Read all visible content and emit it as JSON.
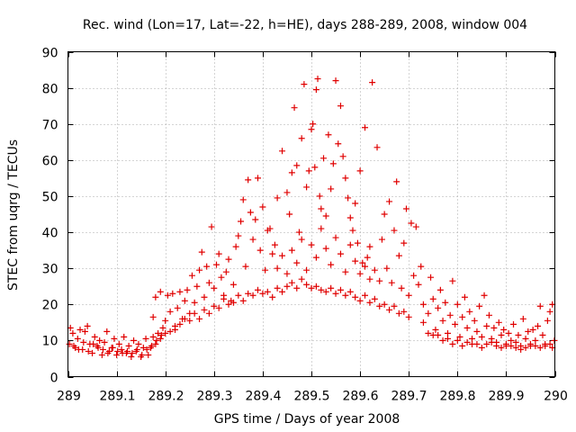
{
  "chart_data": {
    "type": "scatter",
    "title": "Rec. wind (Lon=17, Lat=-22, h=HE), days 288-289, 2008, window 004",
    "xlabel": "GPS time / Days of year 2008",
    "ylabel": "STEC from uqrg / TECUs",
    "xlim": [
      289.0,
      290.0
    ],
    "ylim": [
      0,
      90
    ],
    "grid": true,
    "marker": "+",
    "color": "#e00000",
    "x_ticks": [
      {
        "value": 289.0,
        "label": "289"
      },
      {
        "value": 289.1,
        "label": "289.1"
      },
      {
        "value": 289.2,
        "label": "289.2"
      },
      {
        "value": 289.3,
        "label": "289.3"
      },
      {
        "value": 289.4,
        "label": "289.4"
      },
      {
        "value": 289.5,
        "label": "289.5"
      },
      {
        "value": 289.6,
        "label": "289.6"
      },
      {
        "value": 289.7,
        "label": "289.7"
      },
      {
        "value": 289.8,
        "label": "289.8"
      },
      {
        "value": 289.9,
        "label": "289.9"
      },
      {
        "value": 290.0,
        "label": "290"
      }
    ],
    "y_ticks": [
      {
        "value": 0,
        "label": "0"
      },
      {
        "value": 10,
        "label": "10"
      },
      {
        "value": 20,
        "label": "20"
      },
      {
        "value": 30,
        "label": "30"
      },
      {
        "value": 40,
        "label": "40"
      },
      {
        "value": 50,
        "label": "50"
      },
      {
        "value": 60,
        "label": "60"
      },
      {
        "value": 70,
        "label": "70"
      },
      {
        "value": 80,
        "label": "80"
      },
      {
        "value": 90,
        "label": "90"
      }
    ],
    "points": [
      [
        289.005,
        13.5
      ],
      [
        289.01,
        12.0
      ],
      [
        289.015,
        8.0
      ],
      [
        289.02,
        10.5
      ],
      [
        289.025,
        13.0
      ],
      [
        289.03,
        7.5
      ],
      [
        289.035,
        12.5
      ],
      [
        289.04,
        14.0
      ],
      [
        289.045,
        9.0
      ],
      [
        289.05,
        6.5
      ],
      [
        289.055,
        11.0
      ],
      [
        289.06,
        8.5
      ],
      [
        289.065,
        10.0
      ],
      [
        289.07,
        6.0
      ],
      [
        289.075,
        9.5
      ],
      [
        289.08,
        12.5
      ],
      [
        289.085,
        7.0
      ],
      [
        289.09,
        8.0
      ],
      [
        289.095,
        10.5
      ],
      [
        289.1,
        6.0
      ],
      [
        289.105,
        9.0
      ],
      [
        289.11,
        7.5
      ],
      [
        289.115,
        11.0
      ],
      [
        289.12,
        6.5
      ],
      [
        289.125,
        8.5
      ],
      [
        289.13,
        5.5
      ],
      [
        289.135,
        10.0
      ],
      [
        289.14,
        7.0
      ],
      [
        289.145,
        9.0
      ],
      [
        289.15,
        5.5
      ],
      [
        289.155,
        8.0
      ],
      [
        289.16,
        10.5
      ],
      [
        289.165,
        6.0
      ],
      [
        289.17,
        8.0
      ],
      [
        289.175,
        11.0
      ],
      [
        289.18,
        9.0
      ],
      [
        289.185,
        12.0
      ],
      [
        289.19,
        10.5
      ],
      [
        289.195,
        13.5
      ],
      [
        289.2,
        12.0
      ],
      [
        289.003,
        9.0
      ],
      [
        289.012,
        8.5
      ],
      [
        289.022,
        7.5
      ],
      [
        289.032,
        9.5
      ],
      [
        289.042,
        7.0
      ],
      [
        289.052,
        9.0
      ],
      [
        289.062,
        8.0
      ],
      [
        289.072,
        7.5
      ],
      [
        289.082,
        6.5
      ],
      [
        289.092,
        8.0
      ],
      [
        289.102,
        7.0
      ],
      [
        289.112,
        6.5
      ],
      [
        289.122,
        7.0
      ],
      [
        289.132,
        6.5
      ],
      [
        289.142,
        7.5
      ],
      [
        289.152,
        6.0
      ],
      [
        289.162,
        7.5
      ],
      [
        289.172,
        8.5
      ],
      [
        289.182,
        10.0
      ],
      [
        289.192,
        11.5
      ],
      [
        289.175,
        16.5
      ],
      [
        289.18,
        22.0
      ],
      [
        289.19,
        23.5
      ],
      [
        289.2,
        15.5
      ],
      [
        289.205,
        22.5
      ],
      [
        289.21,
        18.0
      ],
      [
        289.215,
        23.0
      ],
      [
        289.22,
        14.0
      ],
      [
        289.225,
        19.0
      ],
      [
        289.23,
        23.5
      ],
      [
        289.235,
        16.0
      ],
      [
        289.24,
        21.0
      ],
      [
        289.245,
        24.0
      ],
      [
        289.25,
        17.5
      ],
      [
        289.255,
        28.0
      ],
      [
        289.26,
        20.5
      ],
      [
        289.265,
        25.0
      ],
      [
        289.27,
        29.5
      ],
      [
        289.275,
        34.5
      ],
      [
        289.28,
        22.0
      ],
      [
        289.285,
        30.5
      ],
      [
        289.29,
        26.0
      ],
      [
        289.295,
        41.5
      ],
      [
        289.3,
        24.5
      ],
      [
        289.305,
        31.0
      ],
      [
        289.31,
        34.0
      ],
      [
        289.315,
        27.5
      ],
      [
        289.32,
        22.5
      ],
      [
        289.325,
        29.0
      ],
      [
        289.33,
        32.5
      ],
      [
        289.335,
        21.0
      ],
      [
        289.34,
        25.5
      ],
      [
        289.345,
        36.0
      ],
      [
        289.35,
        39.0
      ],
      [
        289.355,
        43.0
      ],
      [
        289.36,
        49.0
      ],
      [
        289.365,
        30.5
      ],
      [
        289.37,
        54.5
      ],
      [
        289.375,
        45.5
      ],
      [
        289.38,
        38.0
      ],
      [
        289.385,
        43.5
      ],
      [
        289.39,
        55.0
      ],
      [
        289.395,
        35.0
      ],
      [
        289.4,
        47.0
      ],
      [
        289.405,
        29.5
      ],
      [
        289.41,
        40.5
      ],
      [
        289.415,
        41.0
      ],
      [
        289.42,
        34.0
      ],
      [
        289.425,
        36.5
      ],
      [
        289.43,
        49.5
      ],
      [
        289.21,
        12.5
      ],
      [
        289.22,
        13.0
      ],
      [
        289.23,
        14.5
      ],
      [
        289.24,
        16.0
      ],
      [
        289.25,
        15.5
      ],
      [
        289.26,
        17.5
      ],
      [
        289.27,
        16.0
      ],
      [
        289.28,
        18.5
      ],
      [
        289.29,
        17.5
      ],
      [
        289.3,
        19.5
      ],
      [
        289.31,
        19.0
      ],
      [
        289.32,
        21.5
      ],
      [
        289.33,
        20.0
      ],
      [
        289.34,
        20.5
      ],
      [
        289.35,
        22.5
      ],
      [
        289.36,
        21.0
      ],
      [
        289.37,
        23.0
      ],
      [
        289.38,
        22.5
      ],
      [
        289.39,
        24.0
      ],
      [
        289.4,
        23.0
      ],
      [
        289.44,
        62.5
      ],
      [
        289.45,
        51.0
      ],
      [
        289.455,
        45.0
      ],
      [
        289.46,
        56.5
      ],
      [
        289.465,
        74.5
      ],
      [
        289.47,
        58.5
      ],
      [
        289.475,
        40.0
      ],
      [
        289.48,
        66.0
      ],
      [
        289.485,
        81.0
      ],
      [
        289.49,
        52.5
      ],
      [
        289.495,
        57.0
      ],
      [
        289.5,
        68.5
      ],
      [
        289.503,
        70.0
      ],
      [
        289.507,
        58.0
      ],
      [
        289.51,
        79.5
      ],
      [
        289.513,
        82.5
      ],
      [
        289.517,
        50.0
      ],
      [
        289.52,
        46.5
      ],
      [
        289.525,
        60.5
      ],
      [
        289.53,
        44.5
      ],
      [
        289.535,
        67.0
      ],
      [
        289.54,
        52.0
      ],
      [
        289.545,
        59.0
      ],
      [
        289.55,
        82.0
      ],
      [
        289.555,
        64.5
      ],
      [
        289.56,
        75.0
      ],
      [
        289.565,
        61.0
      ],
      [
        289.57,
        55.0
      ],
      [
        289.575,
        49.5
      ],
      [
        289.58,
        44.0
      ],
      [
        289.585,
        40.5
      ],
      [
        289.59,
        48.0
      ],
      [
        289.595,
        37.0
      ],
      [
        289.6,
        57.0
      ],
      [
        289.605,
        31.5
      ],
      [
        289.61,
        69.0
      ],
      [
        289.615,
        33.0
      ],
      [
        289.62,
        36.0
      ],
      [
        289.625,
        81.5
      ],
      [
        289.63,
        29.5
      ],
      [
        289.635,
        63.5
      ],
      [
        289.64,
        26.5
      ],
      [
        289.645,
        38.0
      ],
      [
        289.65,
        45.0
      ],
      [
        289.655,
        30.0
      ],
      [
        289.66,
        48.5
      ],
      [
        289.665,
        26.0
      ],
      [
        289.67,
        40.5
      ],
      [
        289.675,
        54.0
      ],
      [
        289.68,
        33.5
      ],
      [
        289.685,
        24.5
      ],
      [
        289.69,
        37.0
      ],
      [
        289.695,
        46.5
      ],
      [
        289.7,
        22.5
      ],
      [
        289.705,
        42.5
      ],
      [
        289.71,
        28.0
      ],
      [
        289.715,
        41.5
      ],
      [
        289.72,
        25.5
      ],
      [
        289.725,
        30.5
      ],
      [
        289.73,
        20.0
      ],
      [
        289.41,
        23.5
      ],
      [
        289.42,
        22.0
      ],
      [
        289.43,
        24.5
      ],
      [
        289.44,
        23.5
      ],
      [
        289.45,
        25.0
      ],
      [
        289.46,
        26.0
      ],
      [
        289.47,
        24.5
      ],
      [
        289.48,
        27.0
      ],
      [
        289.49,
        25.5
      ],
      [
        289.5,
        24.5
      ],
      [
        289.51,
        25.0
      ],
      [
        289.52,
        24.0
      ],
      [
        289.53,
        23.5
      ],
      [
        289.54,
        24.5
      ],
      [
        289.55,
        23.0
      ],
      [
        289.56,
        24.0
      ],
      [
        289.57,
        22.5
      ],
      [
        289.58,
        23.5
      ],
      [
        289.59,
        22.0
      ],
      [
        289.6,
        21.0
      ],
      [
        289.61,
        22.5
      ],
      [
        289.62,
        20.5
      ],
      [
        289.63,
        21.5
      ],
      [
        289.64,
        19.5
      ],
      [
        289.65,
        20.0
      ],
      [
        289.66,
        18.5
      ],
      [
        289.67,
        19.5
      ],
      [
        289.68,
        17.5
      ],
      [
        289.69,
        18.0
      ],
      [
        289.7,
        16.5
      ],
      [
        289.43,
        30.0
      ],
      [
        289.44,
        33.5
      ],
      [
        289.45,
        28.5
      ],
      [
        289.46,
        35.0
      ],
      [
        289.47,
        31.5
      ],
      [
        289.48,
        38.0
      ],
      [
        289.49,
        29.5
      ],
      [
        289.5,
        36.5
      ],
      [
        289.51,
        33.0
      ],
      [
        289.52,
        41.0
      ],
      [
        289.53,
        35.5
      ],
      [
        289.54,
        31.0
      ],
      [
        289.55,
        38.5
      ],
      [
        289.56,
        34.0
      ],
      [
        289.57,
        29.0
      ],
      [
        289.58,
        36.5
      ],
      [
        289.59,
        32.0
      ],
      [
        289.6,
        28.5
      ],
      [
        289.61,
        30.5
      ],
      [
        289.62,
        27.0
      ],
      [
        289.73,
        15.0
      ],
      [
        289.74,
        17.5
      ],
      [
        289.745,
        27.5
      ],
      [
        289.75,
        21.5
      ],
      [
        289.755,
        13.0
      ],
      [
        289.76,
        19.0
      ],
      [
        289.765,
        24.0
      ],
      [
        289.77,
        15.5
      ],
      [
        289.775,
        20.5
      ],
      [
        289.78,
        12.0
      ],
      [
        289.785,
        17.0
      ],
      [
        289.79,
        26.5
      ],
      [
        289.795,
        14.5
      ],
      [
        289.8,
        20.0
      ],
      [
        289.805,
        11.0
      ],
      [
        289.81,
        16.5
      ],
      [
        289.815,
        22.0
      ],
      [
        289.82,
        13.5
      ],
      [
        289.825,
        18.0
      ],
      [
        289.83,
        10.5
      ],
      [
        289.835,
        15.5
      ],
      [
        289.84,
        12.5
      ],
      [
        289.845,
        19.5
      ],
      [
        289.85,
        11.0
      ],
      [
        289.855,
        22.5
      ],
      [
        289.86,
        14.0
      ],
      [
        289.865,
        17.0
      ],
      [
        289.87,
        10.5
      ],
      [
        289.875,
        13.5
      ],
      [
        289.88,
        9.5
      ],
      [
        289.885,
        15.0
      ],
      [
        289.89,
        11.5
      ],
      [
        289.895,
        13.0
      ],
      [
        289.9,
        9.0
      ],
      [
        289.905,
        12.0
      ],
      [
        289.91,
        10.0
      ],
      [
        289.915,
        14.5
      ],
      [
        289.92,
        9.5
      ],
      [
        289.925,
        11.5
      ],
      [
        289.93,
        8.5
      ],
      [
        289.935,
        16.0
      ],
      [
        289.94,
        10.5
      ],
      [
        289.945,
        12.5
      ],
      [
        289.95,
        9.0
      ],
      [
        289.955,
        13.0
      ],
      [
        289.96,
        10.0
      ],
      [
        289.965,
        14.0
      ],
      [
        289.97,
        19.5
      ],
      [
        289.975,
        11.5
      ],
      [
        289.98,
        9.0
      ],
      [
        289.985,
        15.5
      ],
      [
        289.99,
        18.0
      ],
      [
        289.995,
        20.0
      ],
      [
        289.999,
        10.0
      ],
      [
        289.74,
        12.0
      ],
      [
        289.76,
        11.5
      ],
      [
        289.78,
        10.5
      ],
      [
        289.8,
        10.0
      ],
      [
        289.82,
        9.5
      ],
      [
        289.84,
        9.0
      ],
      [
        289.86,
        9.0
      ],
      [
        289.88,
        8.5
      ],
      [
        289.9,
        8.5
      ],
      [
        289.92,
        8.0
      ],
      [
        289.94,
        8.0
      ],
      [
        289.96,
        8.5
      ],
      [
        289.98,
        8.5
      ],
      [
        289.995,
        8.0
      ],
      [
        289.75,
        11.5
      ],
      [
        289.77,
        10.0
      ],
      [
        289.79,
        9.0
      ],
      [
        289.81,
        8.5
      ],
      [
        289.83,
        9.0
      ],
      [
        289.85,
        8.0
      ],
      [
        289.87,
        9.5
      ],
      [
        289.89,
        8.0
      ],
      [
        289.91,
        8.5
      ],
      [
        289.93,
        7.5
      ],
      [
        289.95,
        8.5
      ],
      [
        289.97,
        8.0
      ],
      [
        289.99,
        9.0
      ]
    ]
  }
}
